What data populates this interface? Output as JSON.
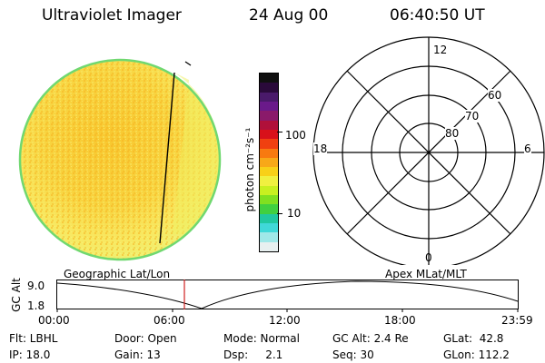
{
  "header": {
    "instrument": "Ultraviolet Imager",
    "date": "24 Aug 00",
    "time": "06:40:50 UT"
  },
  "image_panel": {
    "description_label": "UV auroral image disk"
  },
  "colorbar": {
    "unit_label": "photon cm⁻²s⁻¹",
    "tick_labels": [
      "100",
      "10"
    ],
    "colors": [
      "#101010",
      "#2a0a3a",
      "#4a1a6a",
      "#6a1a8a",
      "#8a1a6a",
      "#b0103a",
      "#d8101a",
      "#f04010",
      "#f87a10",
      "#f8a818",
      "#f8d018",
      "#f0f040",
      "#c8f020",
      "#80e020",
      "#40d040",
      "#20c8a0",
      "#40d8d8",
      "#a0e8e8",
      "#e8f0f0"
    ]
  },
  "polar": {
    "labels": {
      "top": "12",
      "left": "18",
      "right": "6",
      "bottom": "0"
    },
    "ring_labels": [
      "60",
      "70",
      "80"
    ]
  },
  "timeline": {
    "y_axis_label": "GC Alt",
    "y_ticks": [
      "9.0",
      "1.8"
    ],
    "left_caption": "Geographic Lat/Lon",
    "right_caption": "Apex MLat/MLT",
    "x_ticks": [
      "00:00",
      "06:00",
      "12:00",
      "18:00",
      "23:59"
    ],
    "marker_time": "06:40:50"
  },
  "info": {
    "row1": {
      "flt": "Flt: LBHL",
      "door": "Door: Open",
      "mode": "Mode: Normal",
      "gcalt": "GC Alt: 2.4 Re",
      "glat": "GLat:  42.8"
    },
    "row2": {
      "ip": "IP: 18.0",
      "gain": "Gain: 13",
      "dsp": "Dsp:     2.1",
      "seq": "Seq: 30",
      "glon": "GLon: 112.2"
    }
  }
}
